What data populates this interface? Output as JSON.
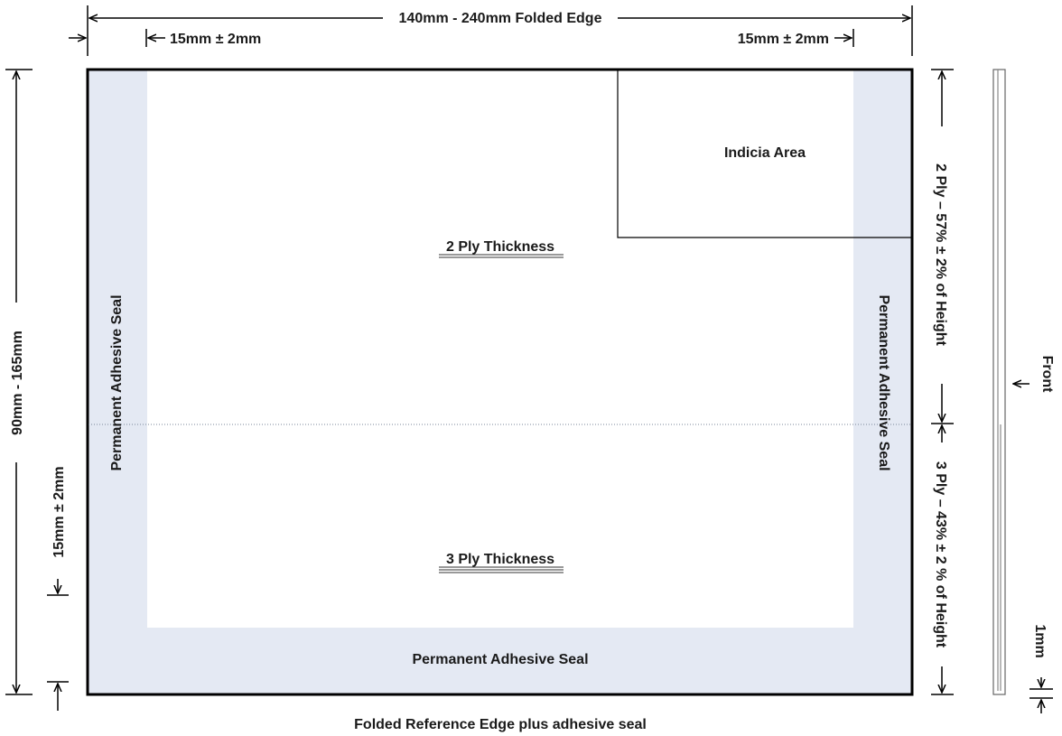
{
  "dimensions": {
    "folded_edge_width": "140mm - 240mm Folded Edge",
    "left_seal_width": "15mm ± 2mm",
    "right_seal_width": "15mm ± 2mm",
    "height": "90mm - 165mm",
    "bottom_seal_height": "15mm ± 2mm",
    "two_ply_height": "2 Ply – 57% ± 2% of Height",
    "three_ply_height": "3 Ply – 43% ± 2 % of Height",
    "thickness": "1mm"
  },
  "areas": {
    "indicia": "Indicia Area",
    "two_ply": "2 Ply Thickness",
    "three_ply": "3 Ply Thickness",
    "left_seal": "Permanent Adhesive Seal",
    "right_seal": "Permanent Adhesive Seal",
    "bottom_seal": "Permanent Adhesive Seal"
  },
  "side_view": {
    "front_label": "Front"
  },
  "footer": {
    "caption": "Folded Reference Edge plus adhesive seal"
  }
}
